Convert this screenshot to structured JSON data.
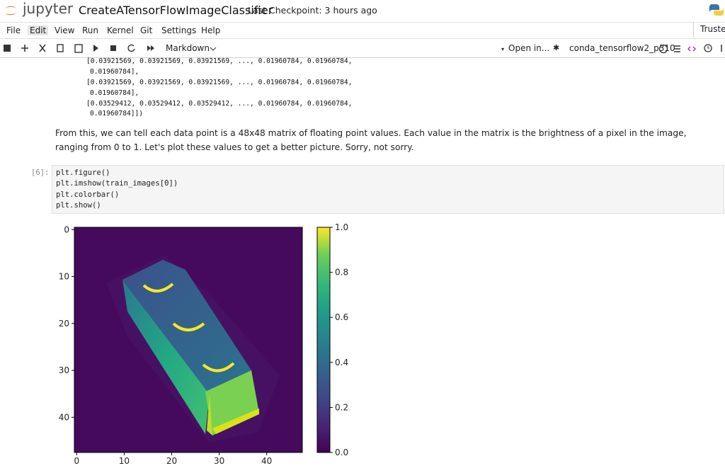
{
  "header": {
    "logo": "jupyter",
    "title": "CreateATensorFlowImageClassifier",
    "checkpoint": "Last Checkpoint: 3 hours ago"
  },
  "menu": [
    "File",
    "Edit",
    "View",
    "Run",
    "Kernel",
    "Git",
    "Settings",
    "Help"
  ],
  "trusted": "Trusted",
  "toolbar": {
    "cell_type": "Markdown",
    "open_in": "Open in...",
    "kernel": "conda_tensorflow2_p310"
  },
  "output_lines": [
    "[0.03921569, 0.03921569, 0.03921569, ..., 0.01960784, 0.01960784,",
    "0.01960784],",
    "[0.03921569, 0.03921569, 0.03921569, ..., 0.01960784, 0.01960784,",
    "0.01960784],",
    "[0.03529412, 0.03529412, 0.03529412, ..., 0.01960784, 0.01960784,",
    "0.01960784]])"
  ],
  "paragraph": "From this, we can tell each data point is a 48x48 matrix of floating point values. Each value in the matrix is the brightness of a pixel in the image, ranging from 0 to 1. Let's plot these values to get a better picture. Sorry, not sorry.",
  "cell": {
    "prompt": "[6]:",
    "code": [
      "plt.figure()",
      "plt.imshow(train_images[0])",
      "plt.colorbar()",
      "plt.show()"
    ]
  },
  "plot": {
    "xlim": [
      -0.5,
      47.5
    ],
    "ylim": [
      47.5,
      -0.5
    ],
    "xticks": [
      0,
      10,
      20,
      30,
      40
    ],
    "yticks": [
      0,
      10,
      20,
      30,
      40
    ],
    "clim": [
      0,
      1
    ],
    "cticks": [
      {
        "value": 0,
        "label": "0.0"
      },
      {
        "value": 0.2,
        "label": "0.2"
      },
      {
        "value": 0.4,
        "label": "0.4"
      },
      {
        "value": 0.6,
        "label": "0.6"
      },
      {
        "value": 0.8,
        "label": "0.8"
      },
      {
        "value": 1,
        "label": "1.0"
      }
    ]
  }
}
